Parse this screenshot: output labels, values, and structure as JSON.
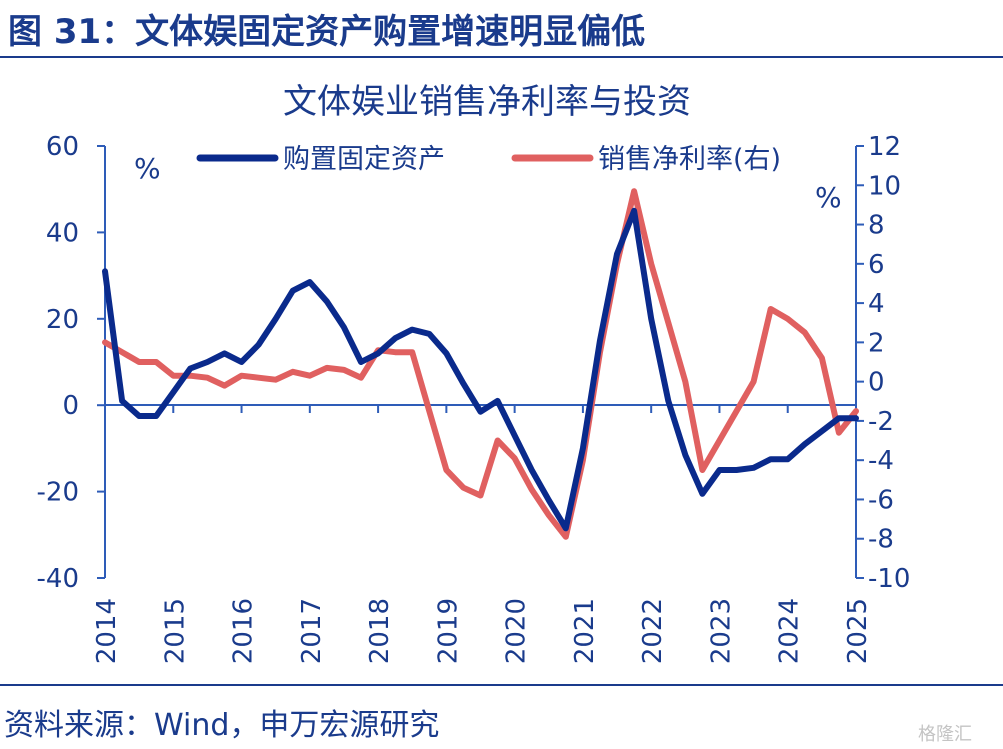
{
  "figure": {
    "title": "图 31：文体娱固定资产购置增速明显偏低",
    "source": "资料来源：Wind，申万宏源研究",
    "watermark": "格隆汇"
  },
  "chart_data": {
    "type": "line",
    "title": "文体娱业销售净利率与投资",
    "x_ticks": [
      "2014",
      "2015",
      "2016",
      "2017",
      "2018",
      "2019",
      "2020",
      "2021",
      "2022",
      "2023",
      "2024",
      "2025"
    ],
    "xlim": [
      2014,
      2025
    ],
    "y_left": {
      "ticks": [
        "60",
        "40",
        "20",
        "0",
        "-20",
        "-40"
      ],
      "lim": [
        -40,
        60
      ],
      "unit": "%"
    },
    "y_right": {
      "ticks": [
        "12",
        "10",
        "8",
        "6",
        "4",
        "2",
        "0",
        "-2",
        "-4",
        "-6",
        "-8",
        "-10"
      ],
      "lim": [
        -10,
        12
      ],
      "unit": "%"
    },
    "grid": false,
    "legend": "top",
    "colors": {
      "axis": "#2e5cb8",
      "text": "#1a3b8c"
    },
    "series": [
      {
        "name": "购置固定资产",
        "axis": "left",
        "color": "#0a2a8c",
        "x": [
          2014.0,
          2014.25,
          2014.5,
          2014.75,
          2015.0,
          2015.25,
          2015.5,
          2015.75,
          2016.0,
          2016.25,
          2016.5,
          2016.75,
          2017.0,
          2017.25,
          2017.5,
          2017.75,
          2018.0,
          2018.25,
          2018.5,
          2018.75,
          2019.0,
          2019.25,
          2019.5,
          2019.75,
          2020.0,
          2020.25,
          2020.5,
          2020.75,
          2021.0,
          2021.25,
          2021.5,
          2021.75,
          2022.0,
          2022.25,
          2022.5,
          2022.75,
          2023.0,
          2023.25,
          2023.5,
          2023.75,
          2024.0,
          2024.25,
          2024.5,
          2024.75,
          2025.0
        ],
        "values": [
          31,
          1,
          -2.5,
          -2.5,
          3,
          8.5,
          10,
          12,
          10,
          14,
          20,
          26.5,
          28.5,
          24,
          18,
          10,
          12,
          15.5,
          17.5,
          16.5,
          12,
          5,
          -1.5,
          1,
          -7,
          -15,
          -22,
          -28.5,
          -10,
          15,
          35,
          45,
          20,
          1,
          -11.5,
          -20.5,
          -15,
          -15,
          -14.5,
          -12.5,
          -12.5,
          -9,
          -6,
          -3,
          -3
        ]
      },
      {
        "name": "销售净利率(右)",
        "axis": "right",
        "color": "#e06060",
        "x": [
          2014.0,
          2014.25,
          2014.5,
          2014.75,
          2015.0,
          2015.25,
          2015.5,
          2015.75,
          2016.0,
          2016.25,
          2016.5,
          2016.75,
          2017.0,
          2017.25,
          2017.5,
          2017.75,
          2018.0,
          2018.25,
          2018.5,
          2018.75,
          2019.0,
          2019.25,
          2019.5,
          2019.75,
          2020.0,
          2020.25,
          2020.5,
          2020.75,
          2021.0,
          2021.25,
          2021.5,
          2021.75,
          2022.0,
          2022.25,
          2022.5,
          2022.75,
          2023.0,
          2023.25,
          2023.5,
          2023.75,
          2024.0,
          2024.25,
          2024.5,
          2024.75,
          2025.0
        ],
        "values": [
          2,
          1.5,
          1,
          1,
          0.3,
          0.3,
          0.2,
          -0.2,
          0.3,
          0.2,
          0.1,
          0.5,
          0.3,
          0.7,
          0.6,
          0.2,
          1.6,
          1.5,
          1.5,
          -1.5,
          -4.5,
          -5.4,
          -5.8,
          -3,
          -3.9,
          -5.5,
          -6.8,
          -7.9,
          -4,
          1.5,
          6,
          9.7,
          6,
          3,
          0,
          -4.5,
          -3,
          -1.5,
          0,
          3.7,
          3.2,
          2.5,
          1.2,
          -2.6,
          -1.5
        ]
      }
    ]
  }
}
